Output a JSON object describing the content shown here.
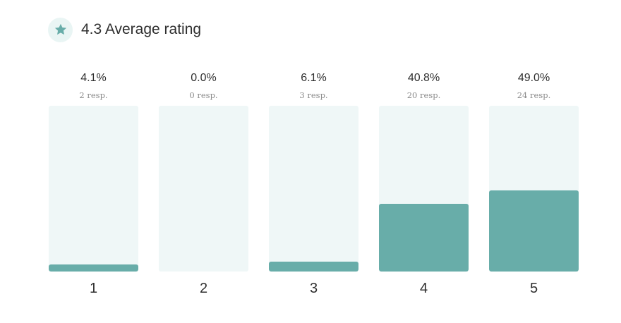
{
  "header": {
    "title": "4.3 Average rating",
    "icon": "star-icon"
  },
  "colors": {
    "accent": "#68ada9",
    "track": "#eff7f7",
    "badge_bg": "#e9f5f4"
  },
  "chart_data": {
    "type": "bar",
    "categories": [
      "1",
      "2",
      "3",
      "4",
      "5"
    ],
    "values": [
      4.1,
      0.0,
      6.1,
      40.8,
      49.0
    ],
    "percent_labels": [
      "4.1%",
      "0.0%",
      "6.1%",
      "40.8%",
      "49.0%"
    ],
    "responses": [
      "2 resp.",
      "0 resp.",
      "3 resp.",
      "20 resp.",
      "24 resp."
    ],
    "ylim": [
      0,
      100
    ]
  }
}
